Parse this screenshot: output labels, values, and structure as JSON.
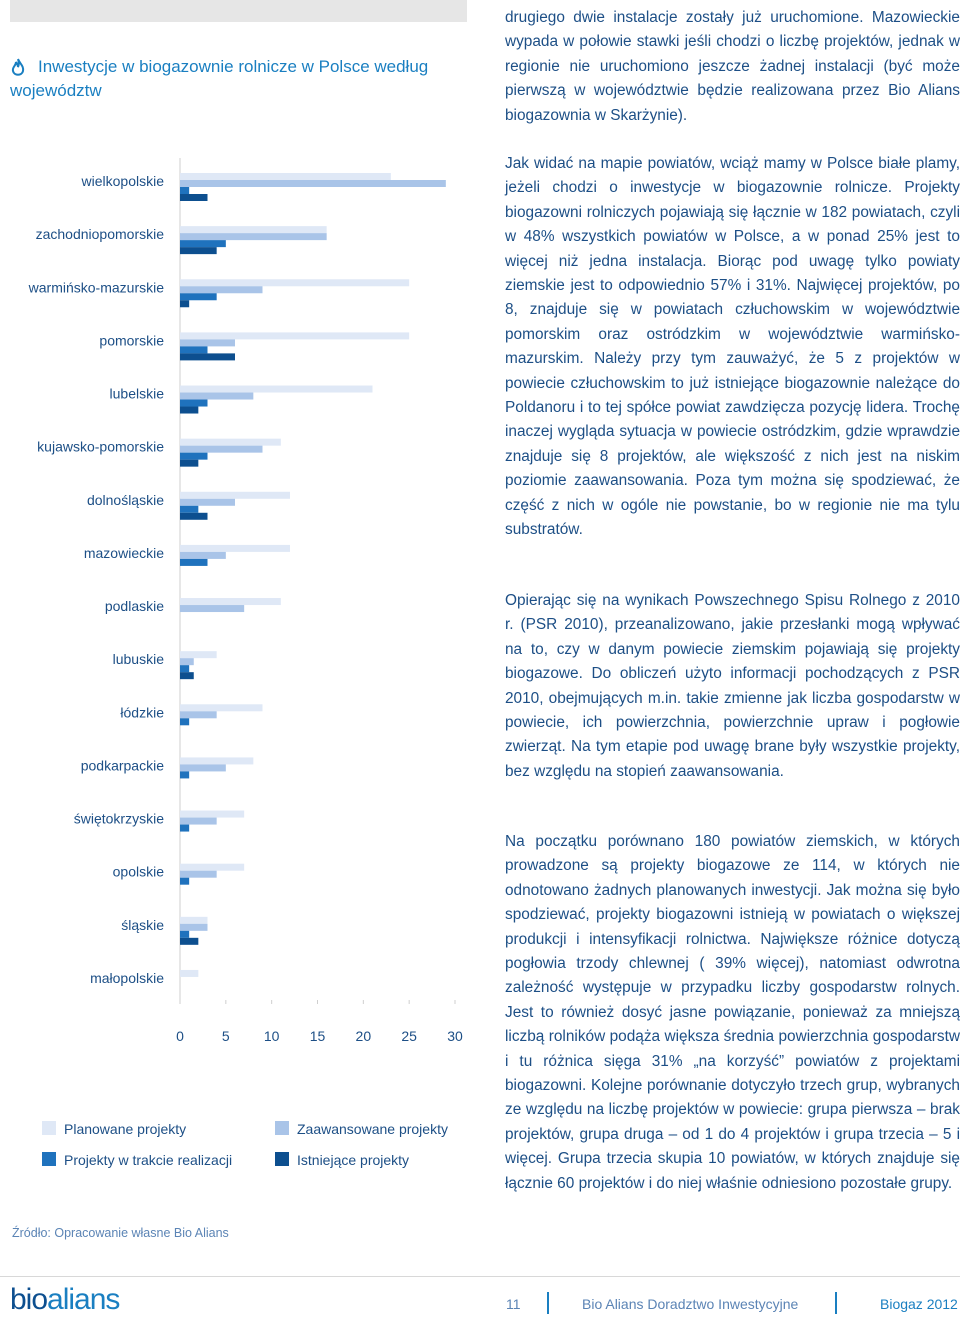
{
  "header": {
    "title": "Inwestycje w biogazownie rolnicze w Polsce według województw"
  },
  "chart": {
    "type": "bar",
    "categories": [
      "wielkopolskie",
      "zachodniopomorskie",
      "warmińsko-mazurskie",
      "pomorskie",
      "lubelskie",
      "kujawsko-pomorskie",
      "dolnośląskie",
      "mazowieckie",
      "podlaskie",
      "lubuskie",
      "łódzkie",
      "podkarpackie",
      "świętokrzyskie",
      "opolskie",
      "śląskie",
      "małopolskie"
    ],
    "series": [
      {
        "name": "Planowane projekty",
        "color": "#dfe8f6",
        "values": [
          23,
          16,
          25,
          25,
          21,
          11,
          12,
          12,
          11,
          4,
          9,
          8,
          7,
          7,
          3,
          2
        ]
      },
      {
        "name": "Zaawansowane projekty",
        "color": "#a9c4e8",
        "values": [
          29,
          16,
          9,
          6,
          8,
          9,
          6,
          5,
          7,
          1.5,
          4,
          5,
          4,
          4,
          3,
          0
        ]
      },
      {
        "name": "Projekty w trakcie realizacji",
        "color": "#1f72bd",
        "values": [
          1,
          5,
          4,
          3,
          3,
          3,
          2,
          3,
          0,
          1,
          1,
          1,
          1,
          1,
          1,
          0
        ]
      },
      {
        "name": "Istniejące projekty",
        "color": "#0d4f8f",
        "values": [
          3,
          4,
          1,
          6,
          2,
          2,
          3,
          0,
          0,
          1.5,
          0,
          0,
          0,
          0,
          2,
          0
        ]
      }
    ],
    "xlim": [
      0,
      30
    ],
    "xticks": [
      0,
      5,
      10,
      15,
      20,
      25,
      30
    ],
    "source": "Źródło: Opracowanie własne Bio Alians"
  },
  "text": {
    "paragraphs": [
      "drugiego dwie instalacje zostały już uruchomione. Mazowieckie wypada w połowie stawki jeśli chodzi o liczbę projektów, jednak w regionie nie uruchomiono jeszcze żadnej instalacji (być może pierwszą w województwie będzie realizowana przez Bio Alians biogazownia w Skarżynie).",
      "Jak widać na mapie powiatów, wciąż mamy w Polsce białe plamy, jeżeli chodzi o inwestycje w biogazownie rolnicze. Projekty biogazowni rolniczych pojawiają się łącznie w 182 powiatach, czyli w 48% wszystkich powiatów w Polsce, a w ponad 25% jest to więcej niż jedna instalacja. Biorąc pod uwagę tylko powiaty ziemskie jest to odpowiednio 57% i 31%. Najwięcej projektów, po 8, znajduje się w powiatach człuchowskim w województwie pomorskim oraz ostródzkim w województwie warmińsko-mazurskim. Należy przy tym zauważyć, że 5 z projektów w powiecie człuchowskim to już istniejące biogazownie należące do Poldanoru i to tej spółce powiat zawdzięcza pozycję lidera. Trochę inaczej wygląda sytuacja w powiecie ostródzkim, gdzie wprawdzie znajduje się 8 projektów, ale większość z nich jest na niskim poziomie zaawansowania. Poza tym można się spodziewać, że część z nich w ogóle nie powstanie, bo w regionie nie ma tylu substratów.",
      "Opierając się na wynikach Powszechnego Spisu Rolnego z 2010 r. (PSR 2010), przeanalizowano, jakie przesłanki mogą wpływać na to, czy w danym powiecie ziemskim pojawiają się projekty biogazowe. Do obliczeń użyto informacji pochodzących z PSR 2010, obejmujących m.in. takie zmienne jak liczba gospodarstw w powiecie, ich powierzchnia, powierzchnie upraw i pogłowie zwierząt. Na tym etapie pod uwagę brane były wszystkie projekty, bez względu na stopień zaawansowania.",
      "Na początku porównano 180 powiatów ziemskich, w których prowadzone są projekty biogazowe ze 114, w których nie odnotowano żadnych planowanych inwestycji. Jak można się było spodziewać, projekty biogazowni istnieją w powiatach o większej produkcji i intensyfikacji rolnictwa. Największe różnice dotyczą pogłowia trzody chlewnej ( 39% więcej), natomiast odwrotna zależność występuje w przypadku liczby gospodarstw rolnych. Jest to również dosyć jasne powiązanie, ponieważ za mniejszą liczbą rolników podąża większa średnia powierzchnia gospodarstw i tu różnica sięga 31% „na korzyść” powiatów z projektami biogazowni. Kolejne porównanie dotyczyło trzech grup, wybranych ze względu na liczbę projektów w powiecie: grupa pierwsza – brak projektów, grupa druga – od 1 do 4 projektów i grupa trzecia – 5 i więcej. Grupa trzecia skupia 10 powiatów, w których znajduje się łącznie 60 projektów i do niej właśnie odniesiono pozostałe grupy."
    ]
  },
  "footer": {
    "logo_bio": "bio",
    "logo_alians": "alians",
    "page": "11",
    "company": "Bio Alians Doradztwo Inwestycyjne",
    "publication": "Biogaz 2012"
  }
}
